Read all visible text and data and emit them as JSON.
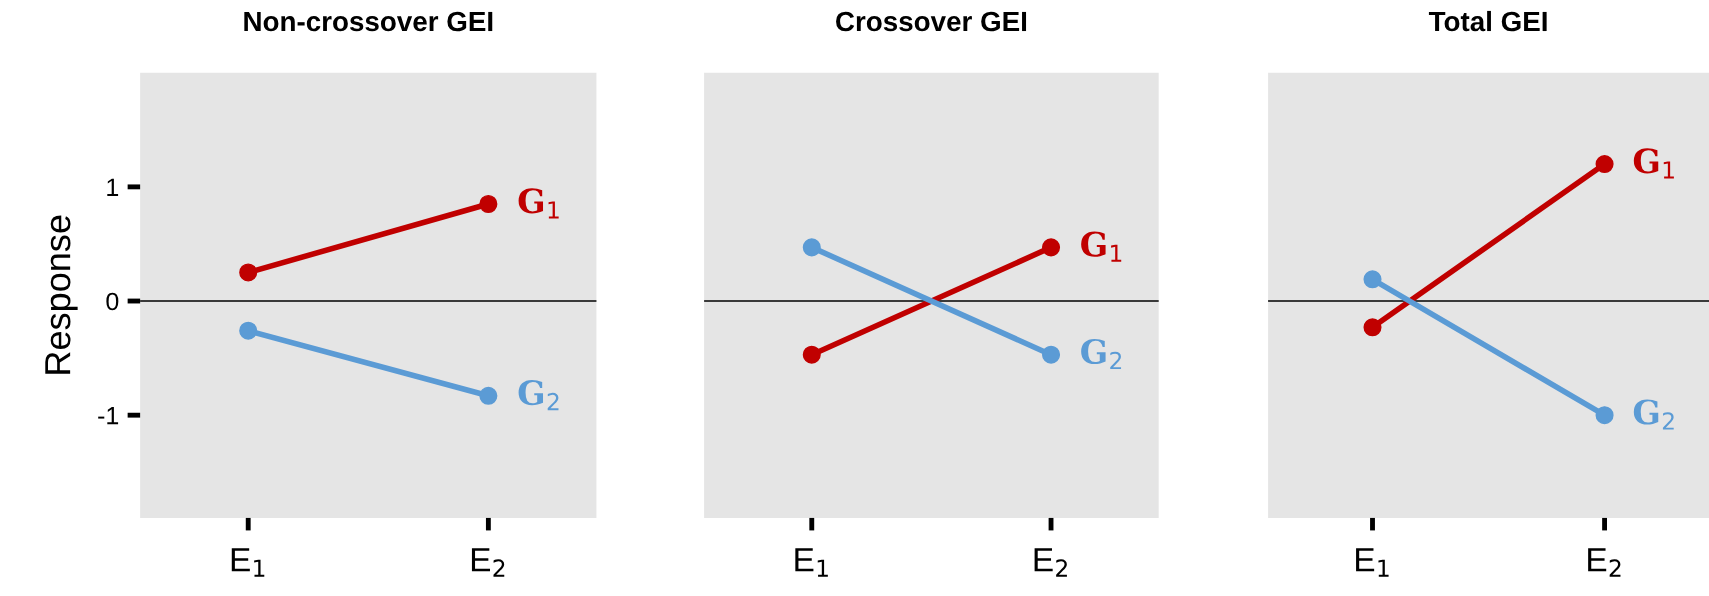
{
  "chart_data": [
    {
      "type": "line",
      "title": "Non-crossover GEI",
      "ylabel": "Response",
      "categories": [
        "E$_{1}$",
        "E$_{2}$"
      ],
      "ylim": [
        -1.9,
        2.0
      ],
      "yticks": [
        -1,
        0,
        1
      ],
      "marker": "circle",
      "grid": false,
      "ref_lines": [
        {
          "axis": "y",
          "value": 0,
          "color": "#000000"
        }
      ],
      "series": [
        {
          "name": "G$_{1}$",
          "color": "#c00000",
          "values": [
            0.25,
            0.85
          ]
        },
        {
          "name": "G$_{2}$",
          "color": "#5b9bd5",
          "values": [
            -0.26,
            -0.83
          ]
        }
      ]
    },
    {
      "type": "line",
      "title": "Crossover GEI",
      "categories": [
        "E$_{1}$",
        "E$_{2}$"
      ],
      "ylim": [
        -1.9,
        2.0
      ],
      "tick_labels": "x",
      "marker": "circle",
      "grid": false,
      "ref_lines": [
        {
          "axis": "y",
          "value": 0,
          "color": "#000000"
        }
      ],
      "series": [
        {
          "name": "G$_{1}$",
          "color": "#c00000",
          "values": [
            -0.47,
            0.47
          ]
        },
        {
          "name": "G$_{2}$",
          "color": "#5b9bd5",
          "values": [
            0.47,
            -0.47
          ]
        }
      ]
    },
    {
      "type": "line",
      "title": "Total GEI",
      "categories": [
        "E$_{1}$",
        "E$_{2}$"
      ],
      "ylim": [
        -1.9,
        2.0
      ],
      "tick_labels": "x",
      "marker": "circle",
      "grid": false,
      "ref_lines": [
        {
          "axis": "y",
          "value": 0,
          "color": "#000000"
        }
      ],
      "series": [
        {
          "name": "G$_{1}$",
          "color": "#c00000",
          "values": [
            -0.23,
            1.2
          ]
        },
        {
          "name": "G$_{2}$",
          "color": "#5b9bd5",
          "values": [
            0.19,
            -1.0
          ]
        }
      ]
    }
  ]
}
